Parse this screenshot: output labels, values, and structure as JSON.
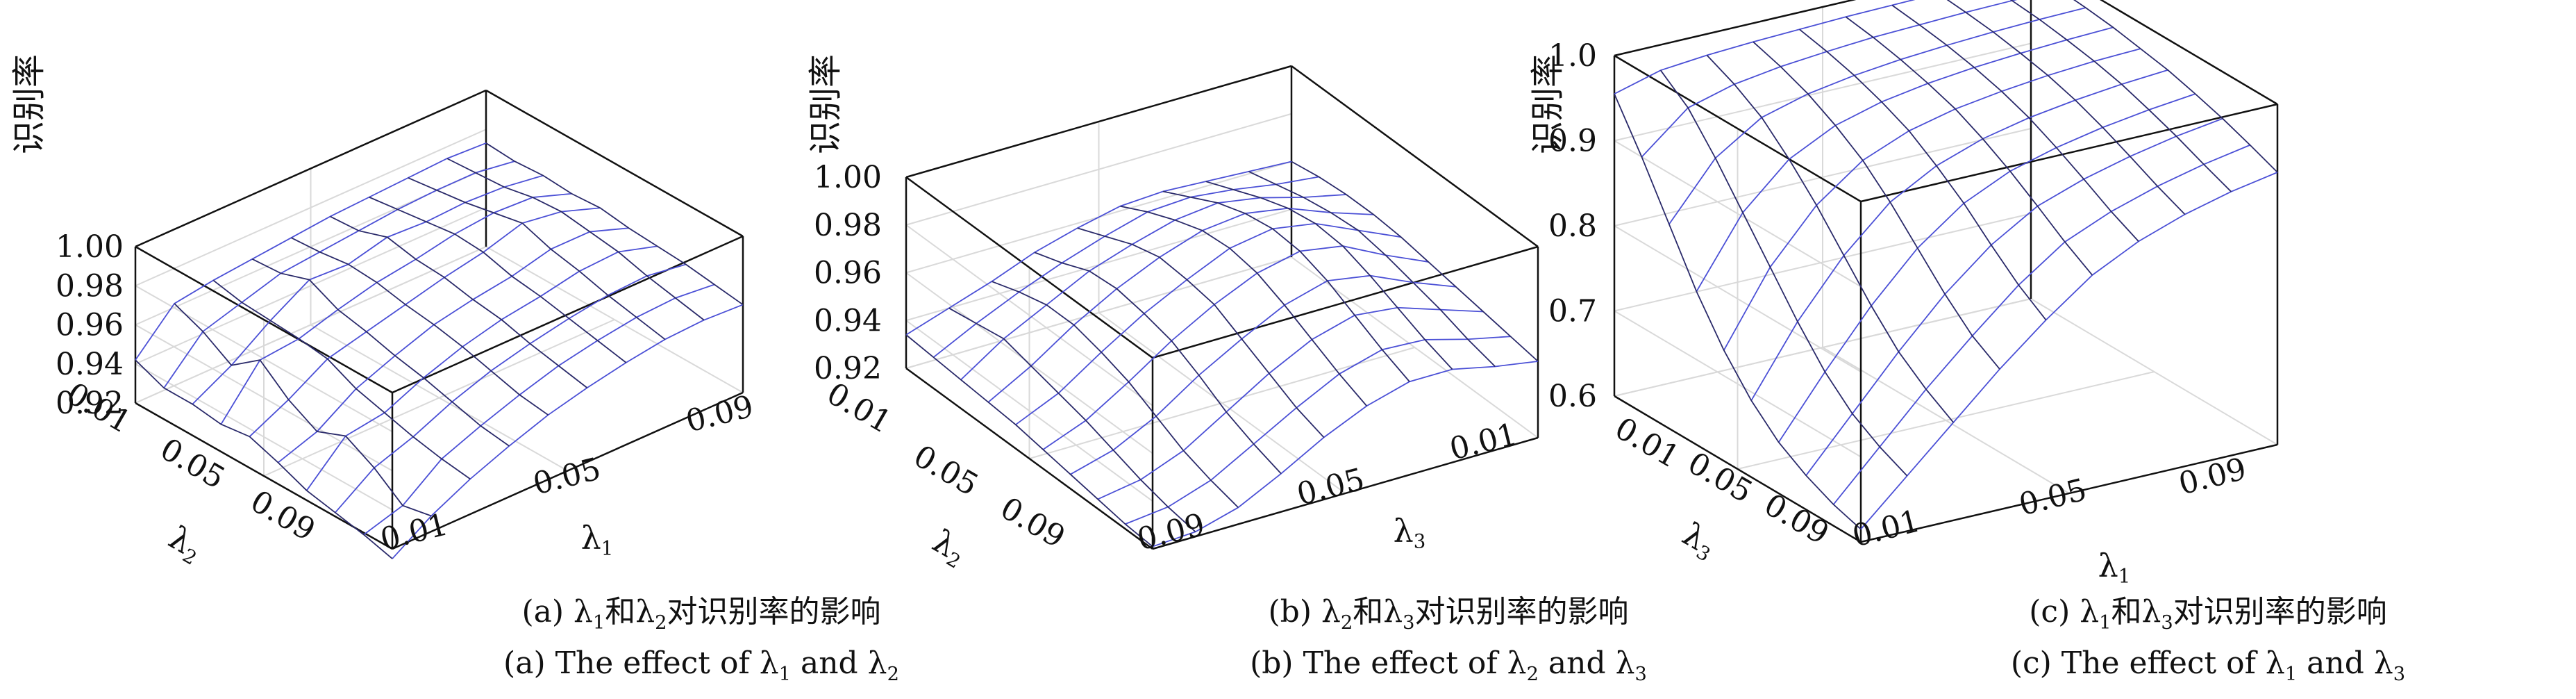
{
  "chart_data": [
    {
      "type": "surface",
      "zlabel": "识别率",
      "zticks": [
        "0.92",
        "0.94",
        "0.96",
        "0.98",
        "1.00"
      ],
      "zlim": [
        0.92,
        1.0
      ],
      "y_axis_ticks": [
        "0.01",
        "0.05",
        "0.09"
      ],
      "y_axis_label": "λ2",
      "x_axis_ticks": [
        "0.01",
        "0.05",
        "0.09"
      ],
      "x_axis_label": "λ1",
      "grid": true,
      "caption_cn": "(a) λ1和λ2对识别率的影响",
      "caption_en": "(a) The effect of λ1 and λ2",
      "grid_size": [
        10,
        10
      ],
      "z": [
        [
          0.942,
          0.962,
          0.965,
          0.967,
          0.969,
          0.971,
          0.972,
          0.973,
          0.974,
          0.973
        ],
        [
          0.936,
          0.956,
          0.962,
          0.968,
          0.97,
          0.972,
          0.974,
          0.975,
          0.975,
          0.972
        ],
        [
          0.936,
          0.947,
          0.961,
          0.973,
          0.972,
          0.977,
          0.976,
          0.977,
          0.976,
          0.973
        ],
        [
          0.934,
          0.958,
          0.96,
          0.966,
          0.971,
          0.974,
          0.978,
          0.98,
          0.979,
          0.972
        ],
        [
          0.936,
          0.946,
          0.958,
          0.963,
          0.968,
          0.973,
          0.977,
          0.983,
          0.98,
          0.973
        ],
        [
          0.931,
          0.938,
          0.951,
          0.959,
          0.966,
          0.97,
          0.973,
          0.978,
          0.978,
          0.971
        ],
        [
          0.925,
          0.944,
          0.947,
          0.956,
          0.963,
          0.968,
          0.971,
          0.975,
          0.976,
          0.97
        ],
        [
          0.922,
          0.936,
          0.943,
          0.952,
          0.959,
          0.964,
          0.968,
          0.971,
          0.972,
          0.969
        ],
        [
          0.919,
          0.925,
          0.94,
          0.948,
          0.955,
          0.961,
          0.965,
          0.968,
          0.969,
          0.967
        ],
        [
          0.915,
          0.928,
          0.938,
          0.946,
          0.953,
          0.958,
          0.962,
          0.965,
          0.966,
          0.965
        ]
      ]
    },
    {
      "type": "surface",
      "zlabel": "识别率",
      "zticks": [
        "0.92",
        "0.94",
        "0.96",
        "0.98",
        "1.00"
      ],
      "zlim": [
        0.92,
        1.0
      ],
      "y_axis_ticks": [
        "0.01",
        "0.05",
        "0.09"
      ],
      "y_axis_label": "λ2",
      "x_axis_ticks": [
        "0.09",
        "0.05",
        "0.01"
      ],
      "x_axis_label": "λ3",
      "grid": true,
      "caption_cn": "(b) λ2和λ3对识别率的影响",
      "caption_en": "(b) The effect of λ2 and λ3",
      "grid_size": [
        10,
        10
      ],
      "z": [
        [
          0.934,
          0.94,
          0.946,
          0.953,
          0.958,
          0.962,
          0.963,
          0.962,
          0.961,
          0.96
        ],
        [
          0.933,
          0.942,
          0.95,
          0.957,
          0.963,
          0.968,
          0.969,
          0.967,
          0.964,
          0.962
        ],
        [
          0.932,
          0.944,
          0.953,
          0.962,
          0.968,
          0.973,
          0.975,
          0.972,
          0.967,
          0.963
        ],
        [
          0.931,
          0.941,
          0.953,
          0.963,
          0.971,
          0.977,
          0.979,
          0.976,
          0.969,
          0.963
        ],
        [
          0.93,
          0.938,
          0.95,
          0.961,
          0.97,
          0.978,
          0.981,
          0.978,
          0.97,
          0.962
        ],
        [
          0.928,
          0.935,
          0.946,
          0.958,
          0.968,
          0.976,
          0.98,
          0.977,
          0.968,
          0.96
        ],
        [
          0.926,
          0.931,
          0.94,
          0.952,
          0.962,
          0.971,
          0.976,
          0.973,
          0.965,
          0.958
        ],
        [
          0.924,
          0.927,
          0.934,
          0.945,
          0.956,
          0.965,
          0.97,
          0.968,
          0.962,
          0.956
        ],
        [
          0.922,
          0.924,
          0.93,
          0.94,
          0.95,
          0.959,
          0.964,
          0.963,
          0.958,
          0.954
        ],
        [
          0.921,
          0.922,
          0.927,
          0.936,
          0.946,
          0.954,
          0.959,
          0.959,
          0.955,
          0.952
        ]
      ]
    },
    {
      "type": "surface",
      "zlabel": "识别率",
      "zticks": [
        "0.6",
        "0.7",
        "0.8",
        "0.9",
        "1.0"
      ],
      "zlim": [
        0.6,
        1.0
      ],
      "y_axis_ticks": [
        "0.01",
        "0.05",
        "0.09"
      ],
      "y_axis_label": "λ3",
      "x_axis_ticks": [
        "0.01",
        "0.05",
        "0.09"
      ],
      "x_axis_label": "λ1",
      "grid": true,
      "caption_cn": "(c) λ1和λ3对识别率的影响",
      "caption_en": "(c) The effect of λ1 and λ3",
      "grid_size": [
        10,
        10
      ],
      "z": [
        [
          0.955,
          0.97,
          0.975,
          0.978,
          0.98,
          0.982,
          0.983,
          0.984,
          0.985,
          0.985
        ],
        [
          0.9,
          0.945,
          0.96,
          0.968,
          0.973,
          0.977,
          0.979,
          0.981,
          0.982,
          0.983
        ],
        [
          0.84,
          0.905,
          0.94,
          0.955,
          0.964,
          0.97,
          0.974,
          0.977,
          0.979,
          0.98
        ],
        [
          0.78,
          0.86,
          0.91,
          0.937,
          0.952,
          0.961,
          0.967,
          0.971,
          0.974,
          0.976
        ],
        [
          0.73,
          0.815,
          0.875,
          0.915,
          0.937,
          0.95,
          0.958,
          0.964,
          0.968,
          0.97
        ],
        [
          0.69,
          0.77,
          0.835,
          0.885,
          0.915,
          0.934,
          0.946,
          0.954,
          0.96,
          0.964
        ],
        [
          0.66,
          0.73,
          0.795,
          0.85,
          0.89,
          0.915,
          0.93,
          0.941,
          0.949,
          0.955
        ],
        [
          0.64,
          0.7,
          0.76,
          0.815,
          0.86,
          0.893,
          0.912,
          0.926,
          0.937,
          0.945
        ],
        [
          0.625,
          0.68,
          0.735,
          0.785,
          0.832,
          0.87,
          0.893,
          0.91,
          0.923,
          0.933
        ],
        [
          0.615,
          0.665,
          0.715,
          0.765,
          0.81,
          0.85,
          0.877,
          0.896,
          0.91,
          0.92
        ]
      ]
    }
  ],
  "colors": {
    "surface_line_x": "#4b50d6",
    "surface_line_y": "#2a2a6a",
    "axis": "#111111",
    "grid": "#d9d9d9"
  }
}
